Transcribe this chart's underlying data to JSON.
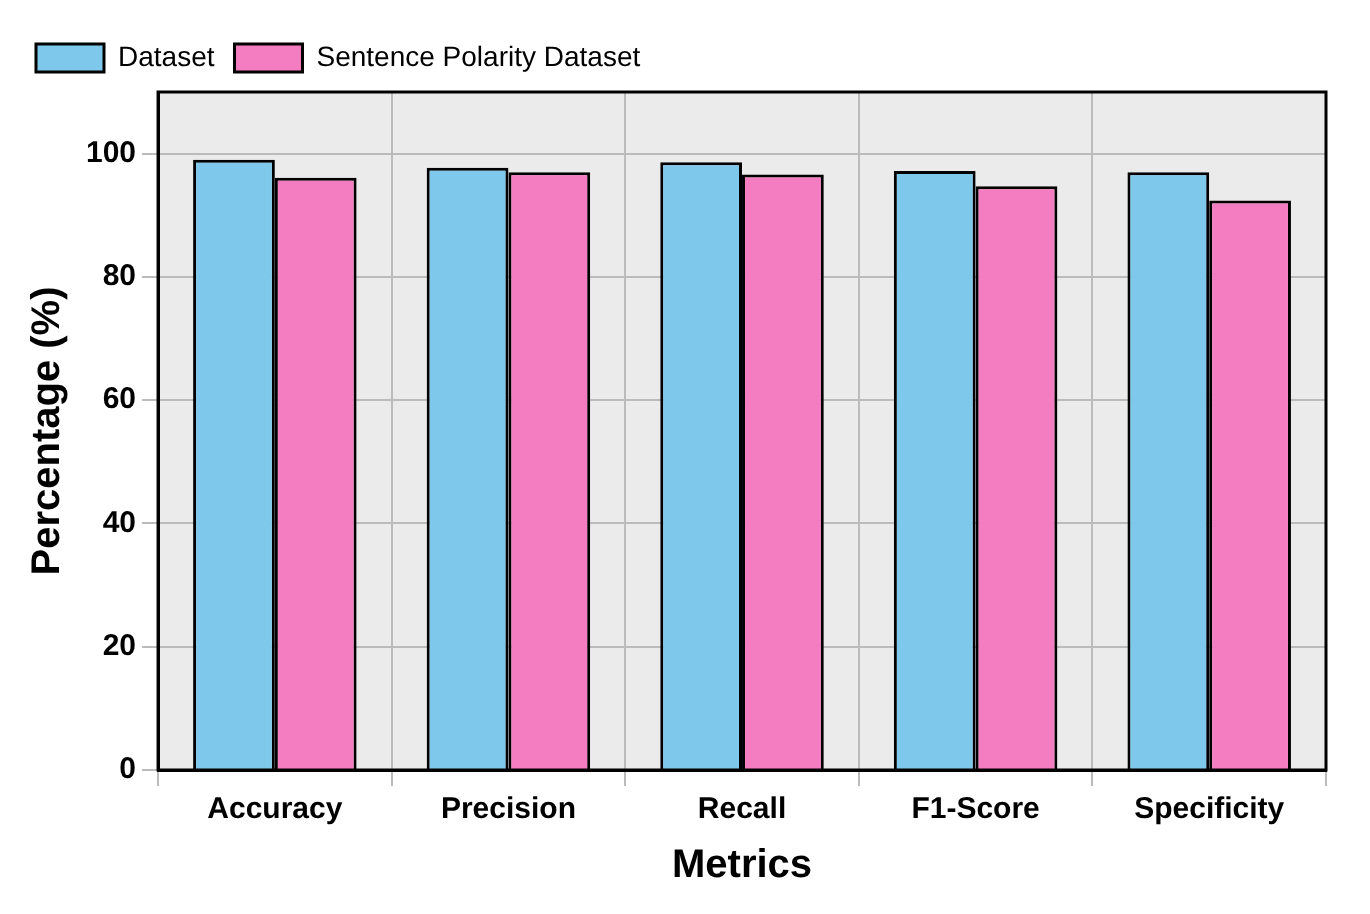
{
  "chart_data": {
    "type": "bar",
    "xlabel": "Metrics",
    "ylabel": "Percentage (%)",
    "categories": [
      "Accuracy",
      "Precision",
      "Recall",
      "F1-Score",
      "Specificity"
    ],
    "series": [
      {
        "name": "Dataset",
        "color": "#7ec8ec",
        "values": [
          99.0,
          97.7,
          98.6,
          97.2,
          97.0
        ]
      },
      {
        "name": "Sentence Polarity Dataset",
        "color": "#f47cc0",
        "values": [
          96.1,
          97.0,
          96.6,
          94.7,
          92.4
        ]
      }
    ],
    "ylim": [
      0,
      110
    ],
    "yticks": [
      0,
      20,
      40,
      60,
      80,
      100
    ],
    "grid": true,
    "legend": "top left"
  }
}
